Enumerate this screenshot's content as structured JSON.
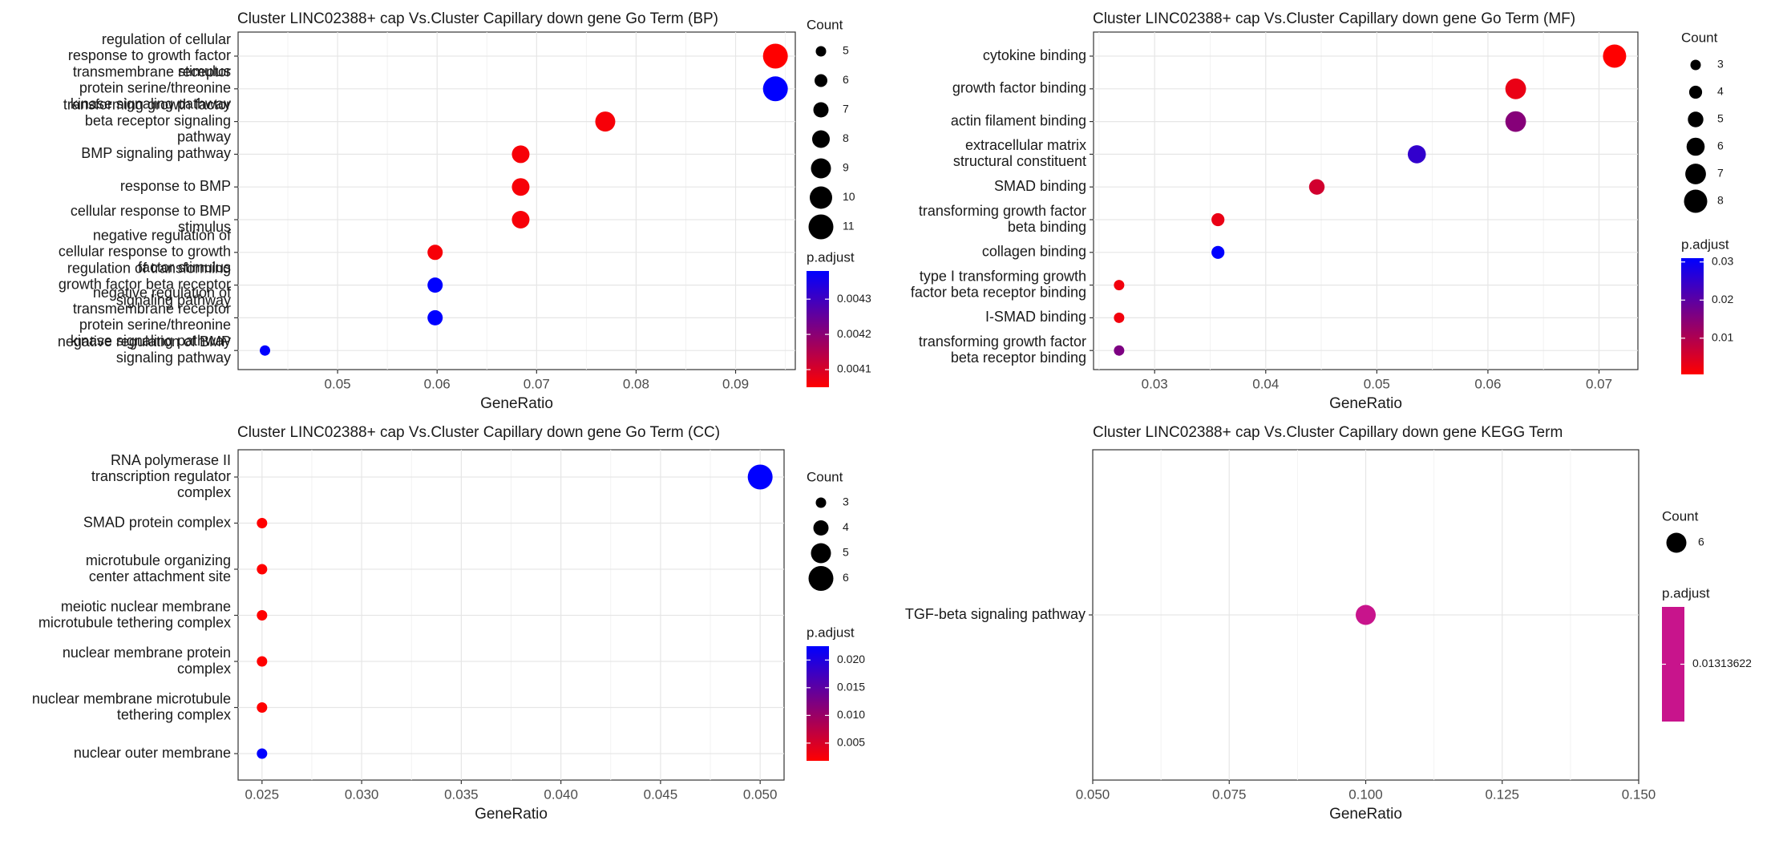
{
  "chart_data": [
    {
      "type": "scatter",
      "title": "Cluster LINC02388+ cap Vs.Cluster Capillary down gene Go Term (BP)",
      "xlabel": "GeneRatio",
      "ylabel": "",
      "xlim": [
        0.04,
        0.096
      ],
      "xticks": [
        0.05,
        0.06,
        0.07,
        0.08,
        0.09
      ],
      "xtick_labels": [
        "0.05",
        "0.06",
        "0.07",
        "0.08",
        "0.09"
      ],
      "grid": true,
      "legend_position": "right",
      "categories": [
        "regulation of cellular response to growth factor stimulus",
        "transmembrane receptor protein serine/threonine kinase signaling pathway",
        "transforming growth factor beta receptor signaling pathway",
        "BMP signaling pathway",
        "response to BMP",
        "cellular response to BMP stimulus",
        "negative regulation of cellular response to growth factor stimulus",
        "regulation of transforming growth factor beta receptor signaling pathway",
        "negative regulation of transmembrane receptor protein serine/threonine kinase signaling pathway",
        "negative regulation of BMP signaling pathway"
      ],
      "category_lines": [
        [
          "regulation of cellular",
          "response to growth factor",
          "stimulus"
        ],
        [
          "transmembrane receptor",
          "protein serine/threonine",
          "kinase signaling pathway"
        ],
        [
          "transforming growth factor",
          "beta receptor signaling",
          "pathway"
        ],
        [
          "BMP signaling pathway"
        ],
        [
          "response to BMP"
        ],
        [
          "cellular response to BMP",
          "stimulus"
        ],
        [
          "negative regulation of",
          "cellular response to growth",
          "factor stimulus"
        ],
        [
          "regulation of transforming",
          "growth factor beta receptor",
          "signaling pathway"
        ],
        [
          "negative regulation of",
          "transmembrane receptor",
          "protein serine/threonine",
          "kinase signaling pathway"
        ],
        [
          "negative regulation of BMP",
          "signaling pathway"
        ]
      ],
      "x": [
        0.094,
        0.094,
        0.0769,
        0.0684,
        0.0684,
        0.0684,
        0.0598,
        0.0598,
        0.0598,
        0.0427
      ],
      "count": [
        11,
        11,
        9,
        8,
        8,
        8,
        7,
        7,
        7,
        5
      ],
      "p_adjust": [
        0.00405,
        0.00438,
        0.00406,
        0.00406,
        0.00406,
        0.00406,
        0.00406,
        0.00438,
        0.00438,
        0.00438
      ],
      "size_legend": {
        "title": "Count",
        "values": [
          5,
          6,
          7,
          8,
          9,
          10,
          11
        ]
      },
      "color_legend": {
        "title": "p.adjust",
        "min": 0.00405,
        "max": 0.00438,
        "ticks": [
          0.0041,
          0.0042,
          0.0043
        ],
        "tick_labels": [
          "0.0041",
          "0.0042",
          "0.0043"
        ]
      }
    },
    {
      "type": "scatter",
      "title": "Cluster LINC02388+ cap Vs.Cluster Capillary down gene Go Term (MF)",
      "xlabel": "GeneRatio",
      "ylabel": "",
      "xlim": [
        0.0245,
        0.0735
      ],
      "xticks": [
        0.03,
        0.04,
        0.05,
        0.06,
        0.07
      ],
      "xtick_labels": [
        "0.03",
        "0.04",
        "0.05",
        "0.06",
        "0.07"
      ],
      "grid": true,
      "legend_position": "right",
      "categories": [
        "cytokine binding",
        "growth factor binding",
        "actin filament binding",
        "extracellular matrix structural constituent",
        "SMAD binding",
        "transforming growth factor beta binding",
        "collagen binding",
        "type I transforming growth factor beta receptor binding",
        "I-SMAD binding",
        "transforming growth factor beta receptor binding"
      ],
      "category_lines": [
        [
          "cytokine binding"
        ],
        [
          "growth factor binding"
        ],
        [
          "actin filament binding"
        ],
        [
          "extracellular matrix",
          "structural constituent"
        ],
        [
          "SMAD binding"
        ],
        [
          "transforming growth factor",
          "beta binding"
        ],
        [
          "collagen binding"
        ],
        [
          "type I transforming growth",
          "factor beta receptor binding"
        ],
        [
          "I-SMAD binding"
        ],
        [
          "transforming growth factor",
          "beta receptor binding"
        ]
      ],
      "x": [
        0.0714,
        0.0625,
        0.0625,
        0.0536,
        0.0446,
        0.0357,
        0.0357,
        0.0268,
        0.0268,
        0.0268
      ],
      "count": [
        8,
        7,
        7,
        6,
        5,
        4,
        4,
        3,
        3,
        3
      ],
      "p_adjust": [
        0.0005,
        0.003,
        0.015,
        0.025,
        0.006,
        0.003,
        0.031,
        0.002,
        0.002,
        0.016
      ],
      "size_legend": {
        "title": "Count",
        "values": [
          3,
          4,
          5,
          6,
          7,
          8
        ]
      },
      "color_legend": {
        "title": "p.adjust",
        "min": 0.0005,
        "max": 0.031,
        "ticks": [
          0.01,
          0.02,
          0.03
        ],
        "tick_labels": [
          "0.01",
          "0.02",
          "0.03"
        ]
      }
    },
    {
      "type": "scatter",
      "title": "Cluster LINC02388+ cap Vs.Cluster Capillary down gene Go Term (CC)",
      "xlabel": "GeneRatio",
      "ylabel": "",
      "xlim": [
        0.0238,
        0.0512
      ],
      "xticks": [
        0.025,
        0.03,
        0.035,
        0.04,
        0.045,
        0.05
      ],
      "xtick_labels": [
        "0.025",
        "0.030",
        "0.035",
        "0.040",
        "0.045",
        "0.050"
      ],
      "grid": true,
      "legend_position": "right",
      "categories": [
        "RNA polymerase II transcription regulator complex",
        "SMAD protein complex",
        "microtubule organizing center attachment site",
        "meiotic nuclear membrane microtubule tethering complex",
        "nuclear membrane protein complex",
        "nuclear membrane microtubule tethering complex",
        "nuclear outer membrane"
      ],
      "category_lines": [
        [
          "RNA polymerase II",
          "transcription regulator",
          "complex"
        ],
        [
          "SMAD protein complex"
        ],
        [
          "microtubule organizing",
          "center attachment site"
        ],
        [
          "meiotic nuclear membrane",
          "microtubule tethering complex"
        ],
        [
          "nuclear membrane protein",
          "complex"
        ],
        [
          "nuclear membrane microtubule",
          "tethering complex"
        ],
        [
          "nuclear outer membrane"
        ]
      ],
      "x": [
        0.05,
        0.025,
        0.025,
        0.025,
        0.025,
        0.025,
        0.025
      ],
      "count": [
        6,
        3,
        3,
        3,
        3,
        3,
        3
      ],
      "p_adjust": [
        0.0225,
        0.0018,
        0.0018,
        0.0018,
        0.0018,
        0.0018,
        0.0225
      ],
      "size_legend": {
        "title": "Count",
        "values": [
          3,
          4,
          5,
          6
        ]
      },
      "color_legend": {
        "title": "p.adjust",
        "min": 0.0018,
        "max": 0.0225,
        "ticks": [
          0.005,
          0.01,
          0.015,
          0.02
        ],
        "tick_labels": [
          "0.005",
          "0.010",
          "0.015",
          "0.020"
        ]
      }
    },
    {
      "type": "scatter",
      "title": "Cluster LINC02388+ cap Vs.Cluster Capillary down gene KEGG Term",
      "xlabel": "GeneRatio",
      "ylabel": "",
      "xlim": [
        0.05,
        0.15
      ],
      "xticks": [
        0.05,
        0.075,
        0.1,
        0.125,
        0.15
      ],
      "xtick_labels": [
        "0.050",
        "0.075",
        "0.100",
        "0.125",
        "0.150"
      ],
      "grid": true,
      "legend_position": "right",
      "categories": [
        "TGF-beta signaling pathway"
      ],
      "category_lines": [
        [
          "TGF-beta signaling pathway"
        ]
      ],
      "x": [
        0.1
      ],
      "count": [
        6
      ],
      "p_adjust": [
        0.01313622
      ],
      "size_legend": {
        "title": "Count",
        "values": [
          6
        ]
      },
      "color_legend": {
        "title": "p.adjust",
        "single": true,
        "ticks": [
          0.01313622
        ],
        "tick_labels": [
          "0.01313622"
        ],
        "color": "#c8148c"
      }
    }
  ]
}
